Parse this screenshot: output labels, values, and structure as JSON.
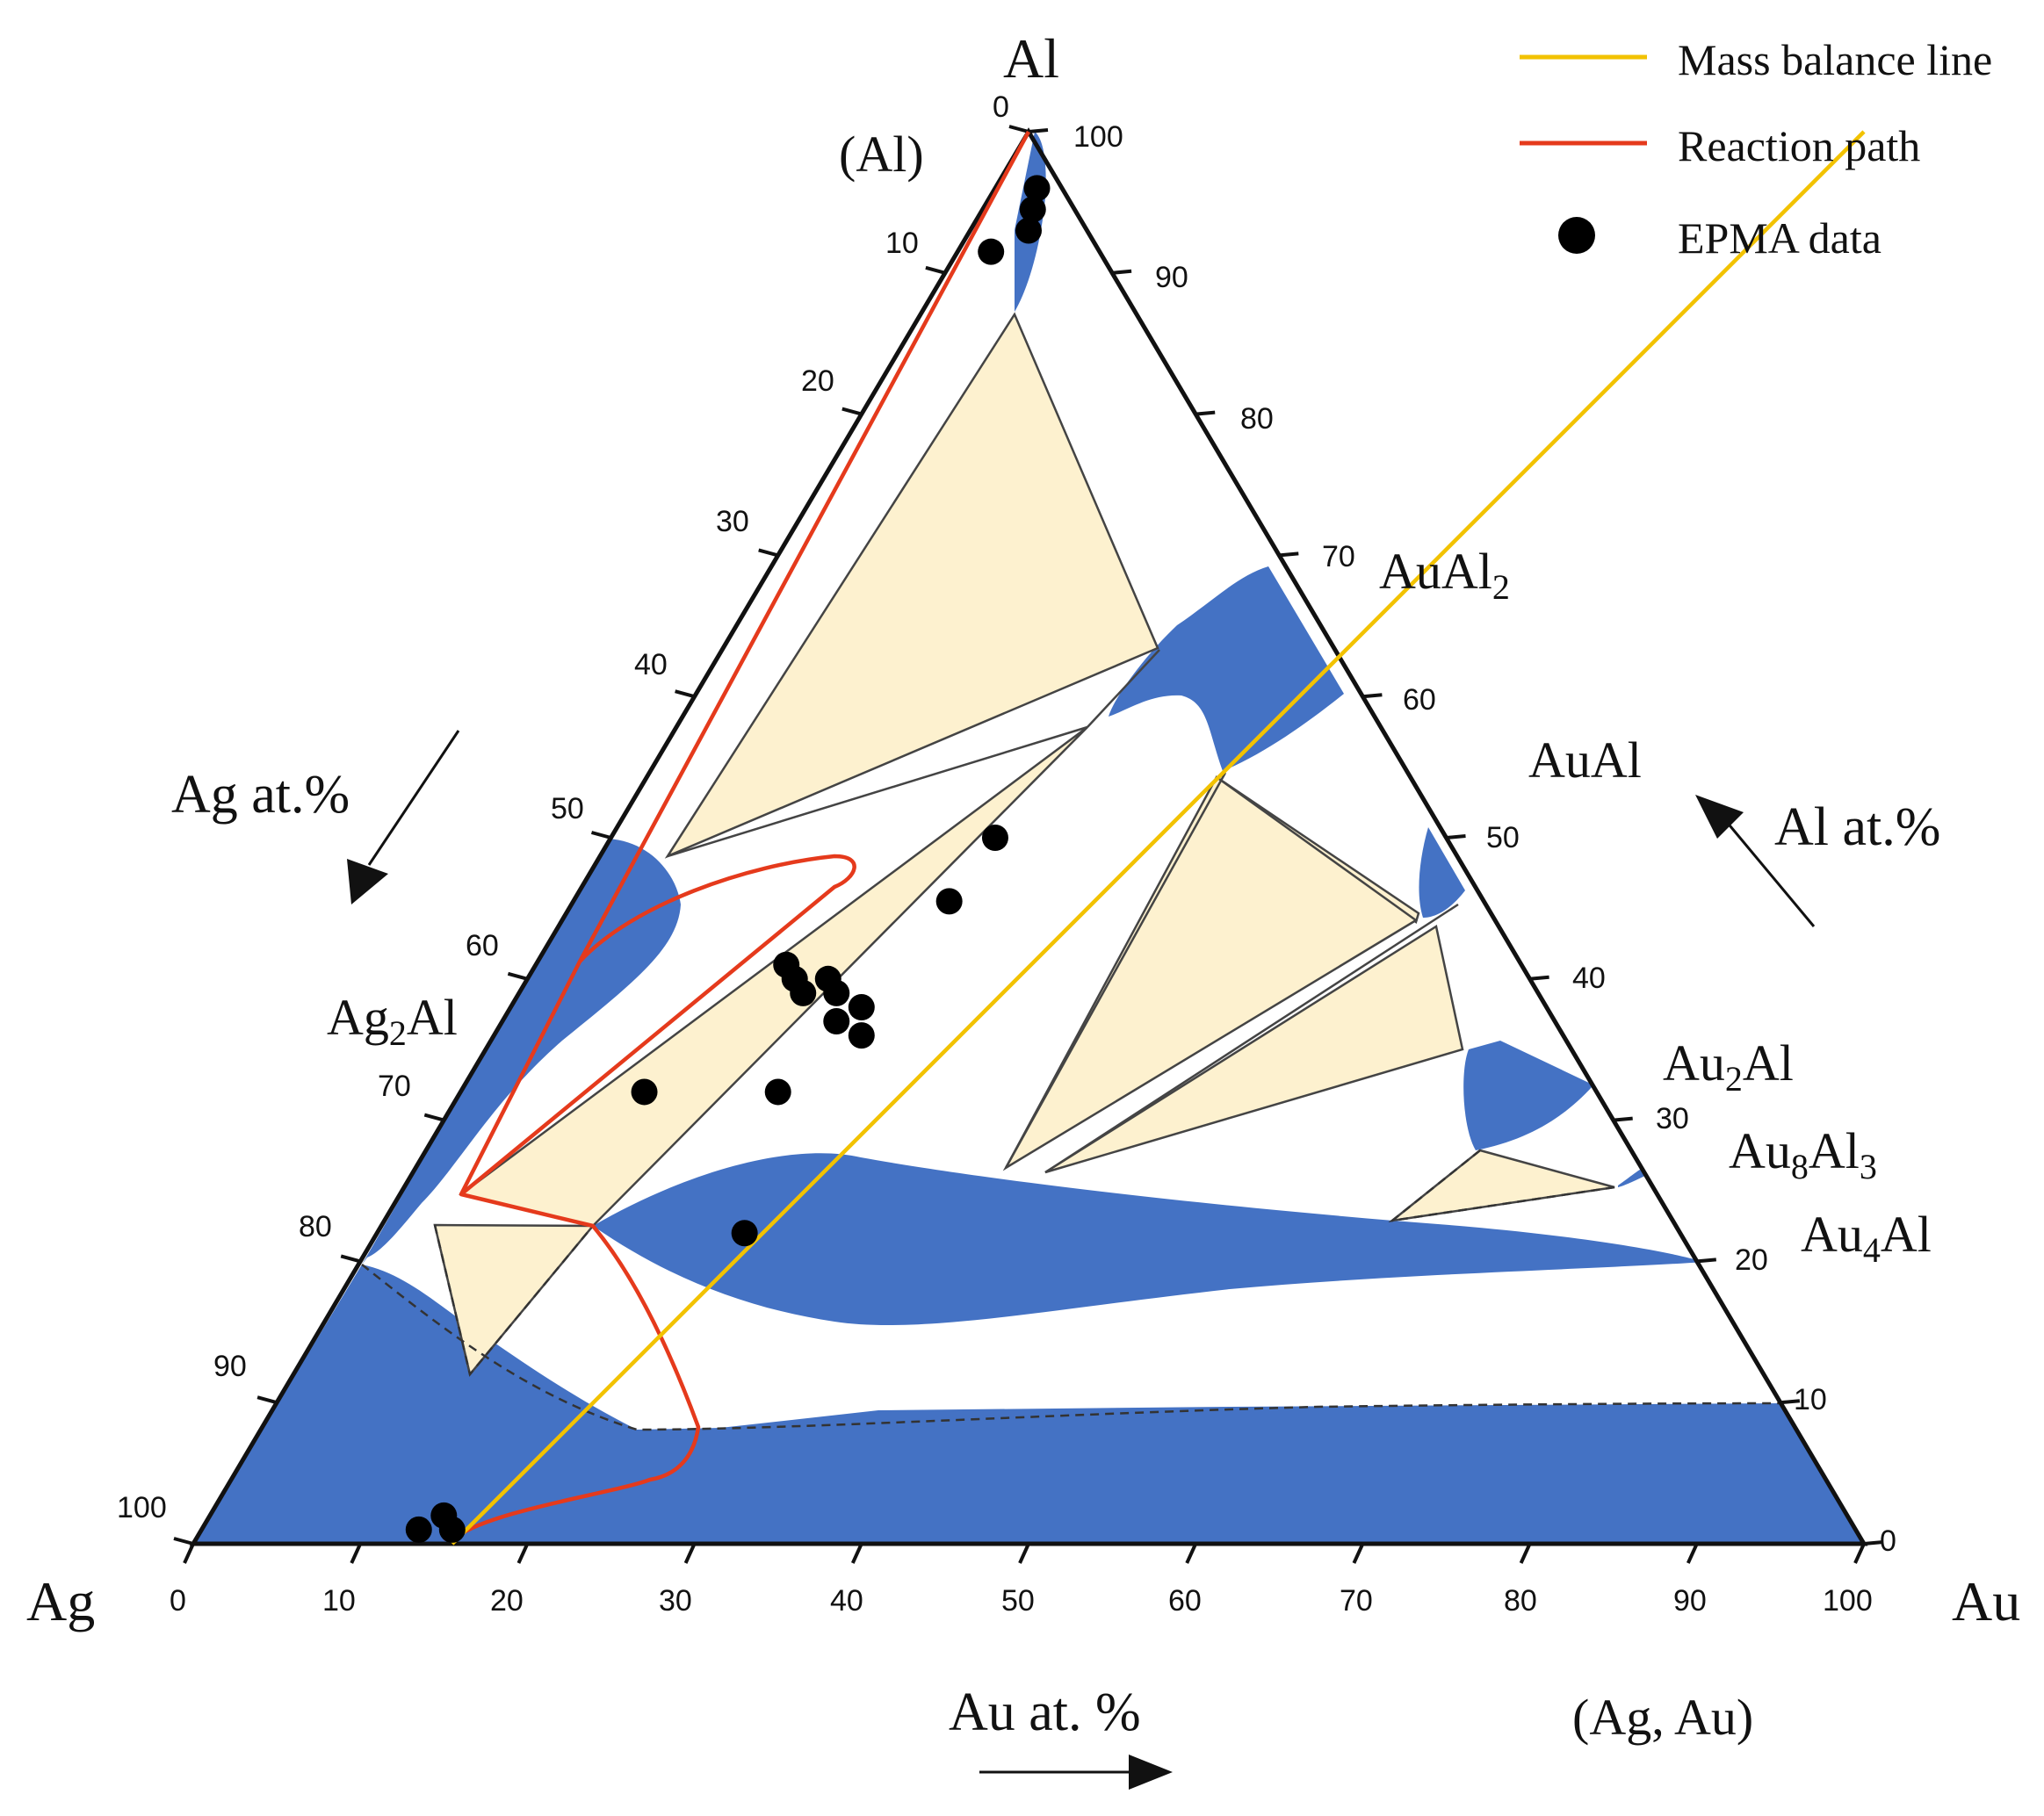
{
  "corners": {
    "top": "Al",
    "left": "Ag",
    "right": "Au"
  },
  "phase_labels": {
    "al_solution": "(Al)",
    "ag2al": {
      "base": "Ag",
      "sub": "2",
      "rest": "Al"
    },
    "aual2": {
      "base": "AuAl",
      "sub": "2"
    },
    "aual": "AuAl",
    "au2al": {
      "base": "Au",
      "sub": "2",
      "rest": "Al"
    },
    "au8al3": {
      "base": "Au",
      "sub": "8",
      "rest": "Al",
      "sub2": "3"
    },
    "au4al": {
      "base": "Au",
      "sub": "4",
      "rest": "Al"
    },
    "ag_au_solution": "(Ag, Au)"
  },
  "axes": {
    "bottom": {
      "label": "Au at. %",
      "ticks": [
        "0",
        "10",
        "20",
        "30",
        "40",
        "50",
        "60",
        "70",
        "80",
        "90",
        "100"
      ]
    },
    "left": {
      "label": "Ag at.%",
      "ticks": [
        "0",
        "10",
        "20",
        "30",
        "40",
        "50",
        "60",
        "70",
        "80",
        "90",
        "100"
      ]
    },
    "right": {
      "label": "Al at.%",
      "ticks": [
        "0",
        "10",
        "20",
        "30",
        "40",
        "50",
        "60",
        "70",
        "80",
        "90",
        "100"
      ]
    }
  },
  "legend": [
    {
      "label": "Mass balance line",
      "kind": "line",
      "color": "#f2c200"
    },
    {
      "label": "Reaction path",
      "kind": "line",
      "color": "#e53a1c"
    },
    {
      "label": "EPMA data",
      "kind": "dot",
      "color": "#000000"
    }
  ],
  "colors": {
    "single_phase": "#4472c4",
    "two_phase": "#fdf1cf",
    "reaction_path": "#e53a1c",
    "mass_balance": "#f2c200"
  },
  "epma_data": [
    {
      "au": 2.5,
      "al": 96
    },
    {
      "au": 3,
      "al": 94.5
    },
    {
      "au": 3.5,
      "al": 93
    },
    {
      "au": 2,
      "al": 91.5
    },
    {
      "au": 23,
      "al": 50
    },
    {
      "au": 22.5,
      "al": 45.5
    },
    {
      "au": 15,
      "al": 41
    },
    {
      "au": 16,
      "al": 40
    },
    {
      "au": 17,
      "al": 39
    },
    {
      "au": 18,
      "al": 40
    },
    {
      "au": 19,
      "al": 39
    },
    {
      "au": 20,
      "al": 37
    },
    {
      "au": 21,
      "al": 38
    },
    {
      "au": 22,
      "al": 36
    },
    {
      "au": 19,
      "al": 32
    },
    {
      "au": 22,
      "al": 22
    },
    {
      "au": 11,
      "al": 32
    },
    {
      "au": 14,
      "al": 2
    },
    {
      "au": 13,
      "al": 1
    },
    {
      "au": 15,
      "al": 1
    }
  ],
  "mass_balance_line": {
    "from": {
      "au": 15.5,
      "al": 0
    },
    "to": {
      "au": 50,
      "al": 100
    }
  }
}
